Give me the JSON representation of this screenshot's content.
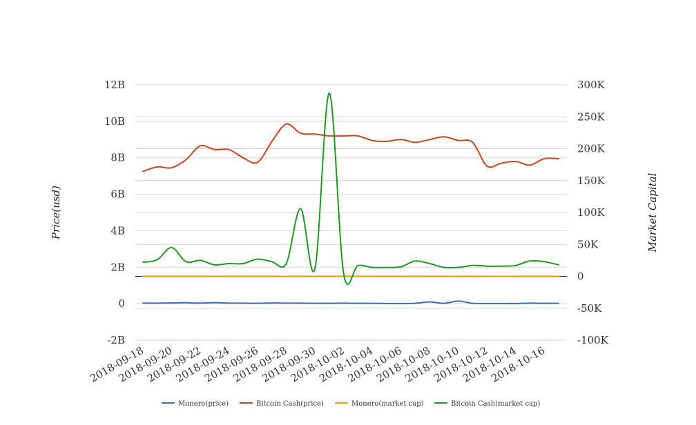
{
  "chart_data": {
    "type": "line",
    "title": "",
    "ylabel_left": "Price(usd)",
    "ylabel_right": "Market Capital",
    "left_axis": {
      "ylim": [
        -2000000000,
        12000000000
      ],
      "ticks": [
        -2000000000,
        0,
        2000000000,
        4000000000,
        6000000000,
        8000000000,
        10000000000,
        12000000000
      ],
      "tick_labels": [
        "-2B",
        "0",
        "2B",
        "4B",
        "6B",
        "8B",
        "10B",
        "12B"
      ]
    },
    "right_axis": {
      "ylim": [
        -100000,
        300000
      ],
      "ticks": [
        -100000,
        -50000,
        0,
        50000,
        100000,
        150000,
        200000,
        250000,
        300000
      ],
      "tick_labels": [
        "-100K",
        "-50K",
        "0",
        "50K",
        "100K",
        "150K",
        "200K",
        "250K",
        "300K"
      ]
    },
    "x": [
      "2018-09-18",
      "2018-09-19",
      "2018-09-20",
      "2018-09-21",
      "2018-09-22",
      "2018-09-23",
      "2018-09-24",
      "2018-09-25",
      "2018-09-26",
      "2018-09-27",
      "2018-09-28",
      "2018-09-29",
      "2018-09-30",
      "2018-10-01",
      "2018-10-02",
      "2018-10-03",
      "2018-10-04",
      "2018-10-05",
      "2018-10-06",
      "2018-10-07",
      "2018-10-08",
      "2018-10-09",
      "2018-10-10",
      "2018-10-11",
      "2018-10-12",
      "2018-10-13",
      "2018-10-14",
      "2018-10-15",
      "2018-10-16",
      "2018-10-17"
    ],
    "x_tick_labels": [
      "2018-09-18",
      "2018-09-20",
      "2018-09-22",
      "2018-09-24",
      "2018-09-26",
      "2018-09-28",
      "2018-09-30",
      "2018-10-02",
      "2018-10-04",
      "2018-10-06",
      "2018-10-08",
      "2018-10-10",
      "2018-10-12",
      "2018-10-14",
      "2018-10-16"
    ],
    "grid": true,
    "legend_position": "bottom-center",
    "series": [
      {
        "name": "Monero(price)",
        "axis": "left",
        "color": "#3b6db3",
        "values": [
          30000000,
          30000000,
          40000000,
          50000000,
          30000000,
          60000000,
          30000000,
          30000000,
          20000000,
          40000000,
          30000000,
          30000000,
          20000000,
          20000000,
          30000000,
          20000000,
          20000000,
          10000000,
          10000000,
          20000000,
          100000000,
          20000000,
          140000000,
          20000000,
          10000000,
          10000000,
          10000000,
          30000000,
          20000000,
          20000000
        ]
      },
      {
        "name": "Bitcoin Cash(price)",
        "axis": "left",
        "color": "#cc4420",
        "values": [
          7250000000,
          7500000000,
          7450000000,
          7900000000,
          8650000000,
          8450000000,
          8450000000,
          8000000000,
          7750000000,
          8900000000,
          9850000000,
          9350000000,
          9300000000,
          9200000000,
          9200000000,
          9200000000,
          8950000000,
          8900000000,
          9000000000,
          8850000000,
          9000000000,
          9150000000,
          8950000000,
          8850000000,
          7550000000,
          7700000000,
          7800000000,
          7600000000,
          7950000000,
          7950000000
        ]
      },
      {
        "name": "Monero(market cap)",
        "axis": "right",
        "color": "#e6a000",
        "values": [
          0,
          0,
          0,
          0,
          0,
          0,
          0,
          0,
          0,
          0,
          0,
          0,
          0,
          0,
          0,
          0,
          0,
          0,
          0,
          0,
          0,
          0,
          0,
          0,
          0,
          0,
          0,
          0,
          0,
          0
        ]
      },
      {
        "name": "Bitcoin Cash(market cap)",
        "axis": "right",
        "color": "#1f9a1f",
        "values": [
          22000,
          26000,
          45000,
          23000,
          25000,
          18000,
          20000,
          20000,
          27000,
          23000,
          20000,
          106000,
          12000,
          287000,
          5000,
          17000,
          14000,
          14000,
          15000,
          24000,
          20000,
          14000,
          14000,
          17000,
          16000,
          16000,
          17000,
          24000,
          23000,
          18000
        ]
      }
    ]
  }
}
